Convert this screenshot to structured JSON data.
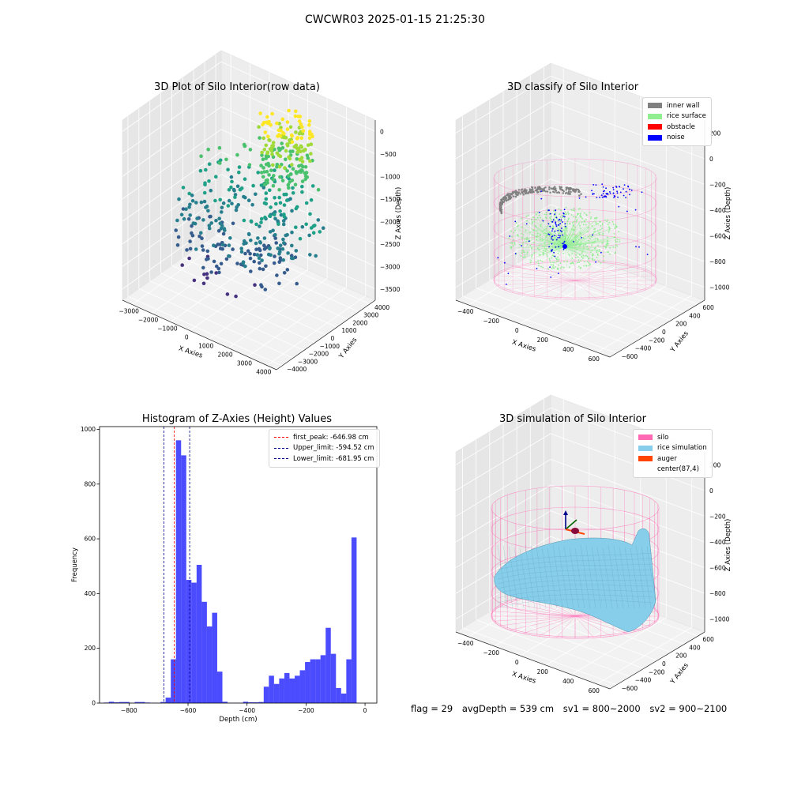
{
  "figure_title": "CWCWR03 2025-01-15 21:25:30",
  "colors": {
    "inner_wall": "#808080",
    "rice_surface": "#90ee90",
    "obstacle": "#ff0000",
    "noise": "#0000ff",
    "silo": "#ff69b4",
    "rice_simulation": "#87ceeb",
    "auger": "#ff4500",
    "hist_bar": "#0000ff",
    "first_peak_line": "#ff0000",
    "limit_line": "#00008b"
  },
  "chart_data": [
    {
      "type": "scatter",
      "projection": "3d",
      "title": "3D Plot of Silo Interior(row data)",
      "xlabel": "X Axies",
      "ylabel": "Y Axies",
      "zlabel": "Z Axies (Depth)",
      "xlim": [
        -3500,
        4500
      ],
      "ylim": [
        -4000,
        4000
      ],
      "zlim": [
        -4000,
        0
      ],
      "x_ticks": [
        "−3000",
        "−2000",
        "−1000",
        "0",
        "1000",
        "2000",
        "3000",
        "4000"
      ],
      "y_ticks": [
        "−4000",
        "−3000",
        "−2000",
        "−1000",
        "0",
        "1000",
        "2000",
        "3000",
        "4000"
      ],
      "z_ticks": [
        "−3500",
        "−3000",
        "−2500",
        "−2000",
        "−1500",
        "−1000",
        "−500",
        "0"
      ],
      "colormap": "viridis"
    },
    {
      "type": "scatter",
      "projection": "3d",
      "title": "3D classify of Silo Interior",
      "xlabel": "X Axies",
      "ylabel": "Y Axies",
      "zlabel": "Z Axies (Depth)",
      "xlim": [
        -500,
        700
      ],
      "ylim": [
        -600,
        600
      ],
      "zlim": [
        -1000,
        250
      ],
      "x_ticks": [
        "−400",
        "−200",
        "0",
        "200",
        "400",
        "600"
      ],
      "y_ticks": [
        "−600",
        "−400",
        "−200",
        "0",
        "200",
        "400",
        "600"
      ],
      "z_ticks": [
        "−1000",
        "−800",
        "−600",
        "−400",
        "−200",
        "0",
        "200"
      ],
      "legend": [
        "inner wall",
        "rice surface",
        "obstacle",
        "noise"
      ]
    },
    {
      "type": "bar",
      "title": "Histogram of Z-Axies (Height) Values",
      "xlabel": "Depth (cm)",
      "ylabel": "Frequency",
      "xlim": [
        -900,
        40
      ],
      "ylim": [
        0,
        1010
      ],
      "x_ticks": [
        -800,
        -600,
        -400,
        -200,
        0
      ],
      "x_tick_labels": [
        "−800",
        "−600",
        "−400",
        "−200",
        "0"
      ],
      "y_ticks": [
        0,
        200,
        400,
        600,
        800,
        1000
      ],
      "bin_start": -886,
      "bin_width": 17.5,
      "values": [
        2,
        5,
        3,
        4,
        4,
        1,
        4,
        4,
        2,
        1,
        1,
        4,
        20,
        160,
        960,
        905,
        450,
        440,
        505,
        370,
        280,
        330,
        115,
        5,
        1,
        1,
        1,
        5,
        3,
        3,
        4,
        60,
        100,
        70,
        90,
        110,
        90,
        100,
        120,
        150,
        160,
        160,
        175,
        275,
        180,
        55,
        35,
        160,
        605
      ],
      "vlines": [
        {
          "label": "first_peak: -646.98 cm",
          "x": -646.98,
          "color": "#ff0000"
        },
        {
          "label": "Upper_limit: -594.52 cm",
          "x": -594.52,
          "color": "#00008b"
        },
        {
          "label": "Lower_limit: -681.95 cm",
          "x": -681.95,
          "color": "#00008b"
        }
      ]
    },
    {
      "type": "surface",
      "projection": "3d",
      "title": "3D simulation of Silo Interior",
      "xlabel": "X Axies",
      "ylabel": "Y Axies",
      "zlabel": "Z Axies (Depth)",
      "xlim": [
        -500,
        700
      ],
      "ylim": [
        -600,
        600
      ],
      "zlim": [
        -1000,
        250
      ],
      "x_ticks": [
        "−400",
        "−200",
        "0",
        "200",
        "400",
        "600"
      ],
      "y_ticks": [
        "−600",
        "−400",
        "−200",
        "0",
        "200",
        "400",
        "600"
      ],
      "z_ticks": [
        "−1000",
        "−800",
        "−600",
        "−400",
        "−200",
        "0",
        "200"
      ],
      "legend": [
        "silo",
        "rice simulation",
        "auger",
        "center(87,4)"
      ]
    }
  ],
  "footer": {
    "flag": "flag = 29",
    "avg_depth": "avgDepth = 539 cm",
    "sv1": "sv1 = 800~2000",
    "sv2": "sv2 = 900~2100"
  }
}
